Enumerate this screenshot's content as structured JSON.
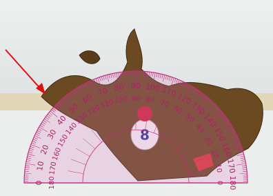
{
  "protractor": {
    "outer_scale": [
      0,
      10,
      20,
      30,
      40,
      50,
      60,
      70,
      80,
      90,
      100,
      110,
      120,
      130,
      140,
      150,
      160,
      170,
      180
    ],
    "inner_scale": [
      180,
      170,
      160,
      150,
      140,
      130,
      120,
      110,
      100,
      90,
      80,
      70,
      60,
      50,
      40,
      30,
      20,
      10,
      0
    ]
  },
  "badge": {
    "label": "8"
  }
}
